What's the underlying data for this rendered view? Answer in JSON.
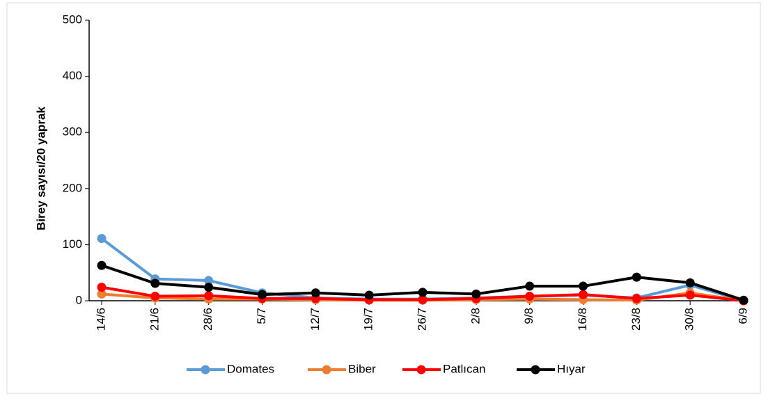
{
  "chart_data": {
    "type": "line",
    "y_label": "Birey  sayısı/20 yaprak",
    "categories": [
      "14/6",
      "21/6",
      "28/6",
      "5/7",
      "12/7",
      "19/7",
      "26/7",
      "2/8",
      "9/8",
      "16/8",
      "23/8",
      "30/8",
      "6/9"
    ],
    "series": [
      {
        "name": "Domates",
        "color": "#5b9bd5",
        "values": [
          111,
          39,
          36,
          14,
          5,
          3,
          3,
          5,
          8,
          10,
          5,
          28,
          0
        ]
      },
      {
        "name": "Biber",
        "color": "#ed7d31",
        "values": [
          12,
          5,
          3,
          3,
          2,
          1,
          1,
          2,
          3,
          2,
          1,
          14,
          0
        ]
      },
      {
        "name": "Patlıcan",
        "color": "#ff0000",
        "values": [
          24,
          8,
          9,
          4,
          4,
          2,
          2,
          4,
          8,
          11,
          4,
          10,
          0
        ]
      },
      {
        "name": "Hıyar",
        "color": "#000000",
        "values": [
          63,
          31,
          24,
          11,
          14,
          10,
          15,
          12,
          26,
          26,
          42,
          32,
          1
        ]
      }
    ],
    "ylim": [
      0,
      500
    ],
    "yticks": [
      0,
      100,
      200,
      300,
      400,
      500
    ],
    "grid": false,
    "legend": "bottom"
  }
}
